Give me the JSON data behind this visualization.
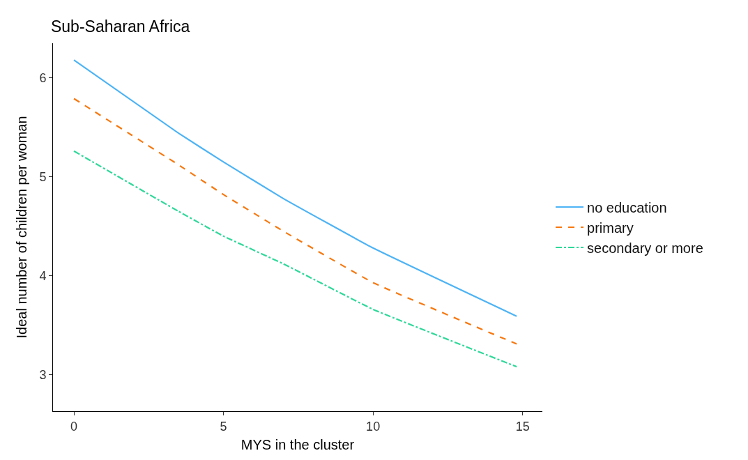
{
  "chart_data": {
    "type": "line",
    "title": "Sub-Saharan Africa",
    "xlabel": "MYS in the cluster",
    "ylabel": "Ideal number of children per woman",
    "x": [
      0,
      3.5,
      5,
      7,
      10,
      14.8
    ],
    "series": [
      {
        "name": "no education",
        "color": "#4db3f5",
        "line_style": "solid",
        "values": [
          6.18,
          5.44,
          5.15,
          4.78,
          4.28,
          3.59
        ]
      },
      {
        "name": "primary",
        "color": "#f7780f",
        "line_style": "dashed",
        "values": [
          5.79,
          5.12,
          4.82,
          4.45,
          3.93,
          3.31
        ]
      },
      {
        "name": "secondary or more",
        "color": "#2fd89a",
        "line_style": "dotted",
        "values": [
          5.26,
          4.65,
          4.4,
          4.12,
          3.66,
          3.08
        ]
      }
    ],
    "xlim": [
      -0.7,
      15.66
    ],
    "xticks": [
      0,
      5,
      10,
      15
    ],
    "ylim": [
      2.63,
      6.35
    ],
    "yticks": [
      3,
      4,
      5,
      6
    ],
    "grid": false,
    "legend": "right",
    "marker": "none"
  }
}
